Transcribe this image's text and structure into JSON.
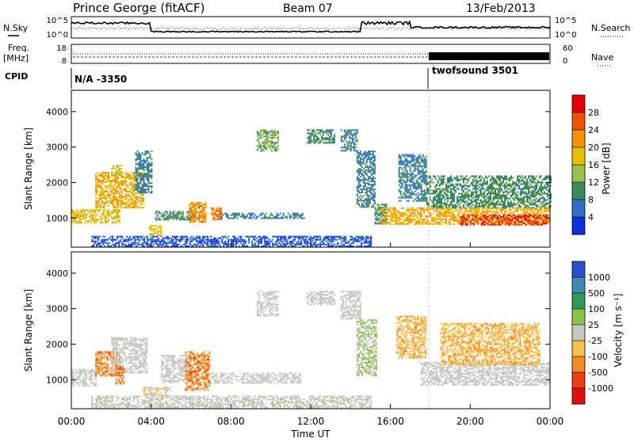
{
  "header": {
    "station": "Prince George (fitACF)",
    "beam": "Beam 07",
    "date": "13/Feb/2013"
  },
  "noise_panel": {
    "left_label": "N.Sky",
    "right_label": "N.Search",
    "left_ticks": [
      "10^5",
      "10^0"
    ],
    "right_ticks": [
      "10^5",
      "10^0"
    ]
  },
  "freq_panel": {
    "left_label_1": "Freq.",
    "left_label_2": "[MHz]",
    "left_ticks": [
      "18",
      "8"
    ],
    "right_ticks": [
      "60",
      "0"
    ],
    "right_label": "Nave"
  },
  "cpid_panel": {
    "label": "CPID",
    "segments": [
      {
        "text": "N/A -3350",
        "start_hour": 0
      },
      {
        "text": "twofsound 3501",
        "start_hour": 18
      }
    ]
  },
  "power_panel": {
    "ylabel": "Slant Range [km]",
    "yticks": [
      "4000",
      "3000",
      "2000",
      "1000"
    ],
    "colorbar_label": "Power [dB]",
    "colorbar_ticks": [
      "28",
      "24",
      "20",
      "16",
      "12",
      "8",
      "4"
    ],
    "colors": [
      "#e00000",
      "#f05000",
      "#f59000",
      "#e6c000",
      "#9ac14a",
      "#3f8a5a",
      "#2c6fc4",
      "#1030e0"
    ]
  },
  "velocity_panel": {
    "ylabel": "Slant Range [km]",
    "yticks": [
      "4000",
      "3000",
      "2000",
      "1000"
    ],
    "colorbar_label": "Velocity [m s⁻¹]",
    "colorbar_ticks": [
      "1000",
      "500",
      "100",
      "25",
      "-25",
      "-100",
      "-500",
      "-1000"
    ],
    "colors": [
      "#2c4fcf",
      "#3b8ab0",
      "#2f9a5a",
      "#87c44a",
      "#c8c8c0",
      "#f0c050",
      "#f08a20",
      "#e84010",
      "#e01010"
    ]
  },
  "x_axis": {
    "ticks": [
      "00:00",
      "04:00",
      "08:00",
      "12:00",
      "16:00",
      "20:00",
      "00:00"
    ],
    "label": "Time UT"
  },
  "chart_data": [
    {
      "type": "heatmap",
      "title": "Power [dB]",
      "xlabel": "Time UT",
      "ylabel": "Slant Range [km]",
      "xlim_hours": [
        0,
        24
      ],
      "ylim": [
        180,
        4600
      ],
      "clim": [
        0,
        32
      ],
      "regions": [
        {
          "t0": 0.0,
          "t1": 2.4,
          "r0": 850,
          "r1": 1250,
          "v": 18
        },
        {
          "t0": 1.2,
          "t1": 3.6,
          "r0": 1300,
          "r1": 2300,
          "v": 20
        },
        {
          "t0": 2.0,
          "t1": 2.5,
          "r0": 2200,
          "r1": 2500,
          "v": 16
        },
        {
          "t0": 3.2,
          "t1": 4.0,
          "r0": 1700,
          "r1": 2900,
          "v": 8
        },
        {
          "t0": 3.9,
          "t1": 4.5,
          "r0": 500,
          "r1": 800,
          "v": 18
        },
        {
          "t0": 4.2,
          "t1": 6.2,
          "r0": 950,
          "r1": 1200,
          "v": 10
        },
        {
          "t0": 5.9,
          "t1": 6.7,
          "r0": 900,
          "r1": 1450,
          "v": 22
        },
        {
          "t0": 7.0,
          "t1": 7.5,
          "r0": 950,
          "r1": 1300,
          "v": 24
        },
        {
          "t0": 7.5,
          "t1": 11.7,
          "r0": 1000,
          "r1": 1150,
          "v": 8
        },
        {
          "t0": 9.3,
          "t1": 10.4,
          "r0": 2900,
          "r1": 3500,
          "v": 12
        },
        {
          "t0": 11.8,
          "t1": 13.2,
          "r0": 3100,
          "r1": 3500,
          "v": 10
        },
        {
          "t0": 13.5,
          "t1": 14.3,
          "r0": 2900,
          "r1": 3500,
          "v": 8
        },
        {
          "t0": 14.3,
          "t1": 15.2,
          "r0": 1300,
          "r1": 2900,
          "v": 8
        },
        {
          "t0": 15.2,
          "t1": 15.8,
          "r0": 850,
          "r1": 1400,
          "v": 10
        },
        {
          "t0": 16.4,
          "t1": 17.8,
          "r0": 1500,
          "r1": 2800,
          "v": 8
        },
        {
          "t0": 17.8,
          "t1": 24.0,
          "r0": 1300,
          "r1": 2200,
          "v": 10
        },
        {
          "t0": 15.5,
          "t1": 24.0,
          "r0": 850,
          "r1": 1300,
          "v": 20
        },
        {
          "t0": 19.5,
          "t1": 23.8,
          "r0": 800,
          "r1": 1100,
          "v": 28
        },
        {
          "t0": 1.0,
          "t1": 15.0,
          "r0": 200,
          "r1": 500,
          "v": 4
        }
      ]
    },
    {
      "type": "heatmap",
      "title": "Velocity [m s⁻¹]",
      "xlabel": "Time UT",
      "ylabel": "Slant Range [km]",
      "xlim_hours": [
        0,
        24
      ],
      "ylim": [
        180,
        4600
      ],
      "clim": [
        -1000,
        1000
      ],
      "regions": [
        {
          "t0": 0.0,
          "t1": 1.2,
          "r0": 850,
          "r1": 1300,
          "v": 0
        },
        {
          "t0": 1.2,
          "t1": 2.4,
          "r0": 1100,
          "r1": 1800,
          "v": -500
        },
        {
          "t0": 2.0,
          "t1": 3.8,
          "r0": 1200,
          "r1": 2200,
          "v": 0
        },
        {
          "t0": 2.2,
          "t1": 2.6,
          "r0": 900,
          "r1": 1400,
          "v": -500
        },
        {
          "t0": 3.6,
          "t1": 5.0,
          "r0": 550,
          "r1": 800,
          "v": -100
        },
        {
          "t0": 4.5,
          "t1": 6.0,
          "r0": 900,
          "r1": 1700,
          "v": 0
        },
        {
          "t0": 5.7,
          "t1": 6.9,
          "r0": 700,
          "r1": 1800,
          "v": -500
        },
        {
          "t0": 7.0,
          "t1": 11.5,
          "r0": 900,
          "r1": 1200,
          "v": 0
        },
        {
          "t0": 9.3,
          "t1": 10.4,
          "r0": 2800,
          "r1": 3500,
          "v": 0
        },
        {
          "t0": 11.8,
          "t1": 13.2,
          "r0": 3100,
          "r1": 3500,
          "v": 0
        },
        {
          "t0": 13.5,
          "t1": 14.5,
          "r0": 2700,
          "r1": 3500,
          "v": 0
        },
        {
          "t0": 14.3,
          "t1": 15.3,
          "r0": 1100,
          "r1": 2700,
          "v": 100
        },
        {
          "t0": 16.3,
          "t1": 17.8,
          "r0": 1600,
          "r1": 2800,
          "v": -300
        },
        {
          "t0": 17.5,
          "t1": 24.0,
          "r0": 850,
          "r1": 1500,
          "v": 0
        },
        {
          "t0": 18.5,
          "t1": 23.5,
          "r0": 1400,
          "r1": 2600,
          "v": -300
        },
        {
          "t0": 1.0,
          "t1": 15.0,
          "r0": 200,
          "r1": 550,
          "v": 50
        }
      ]
    }
  ]
}
